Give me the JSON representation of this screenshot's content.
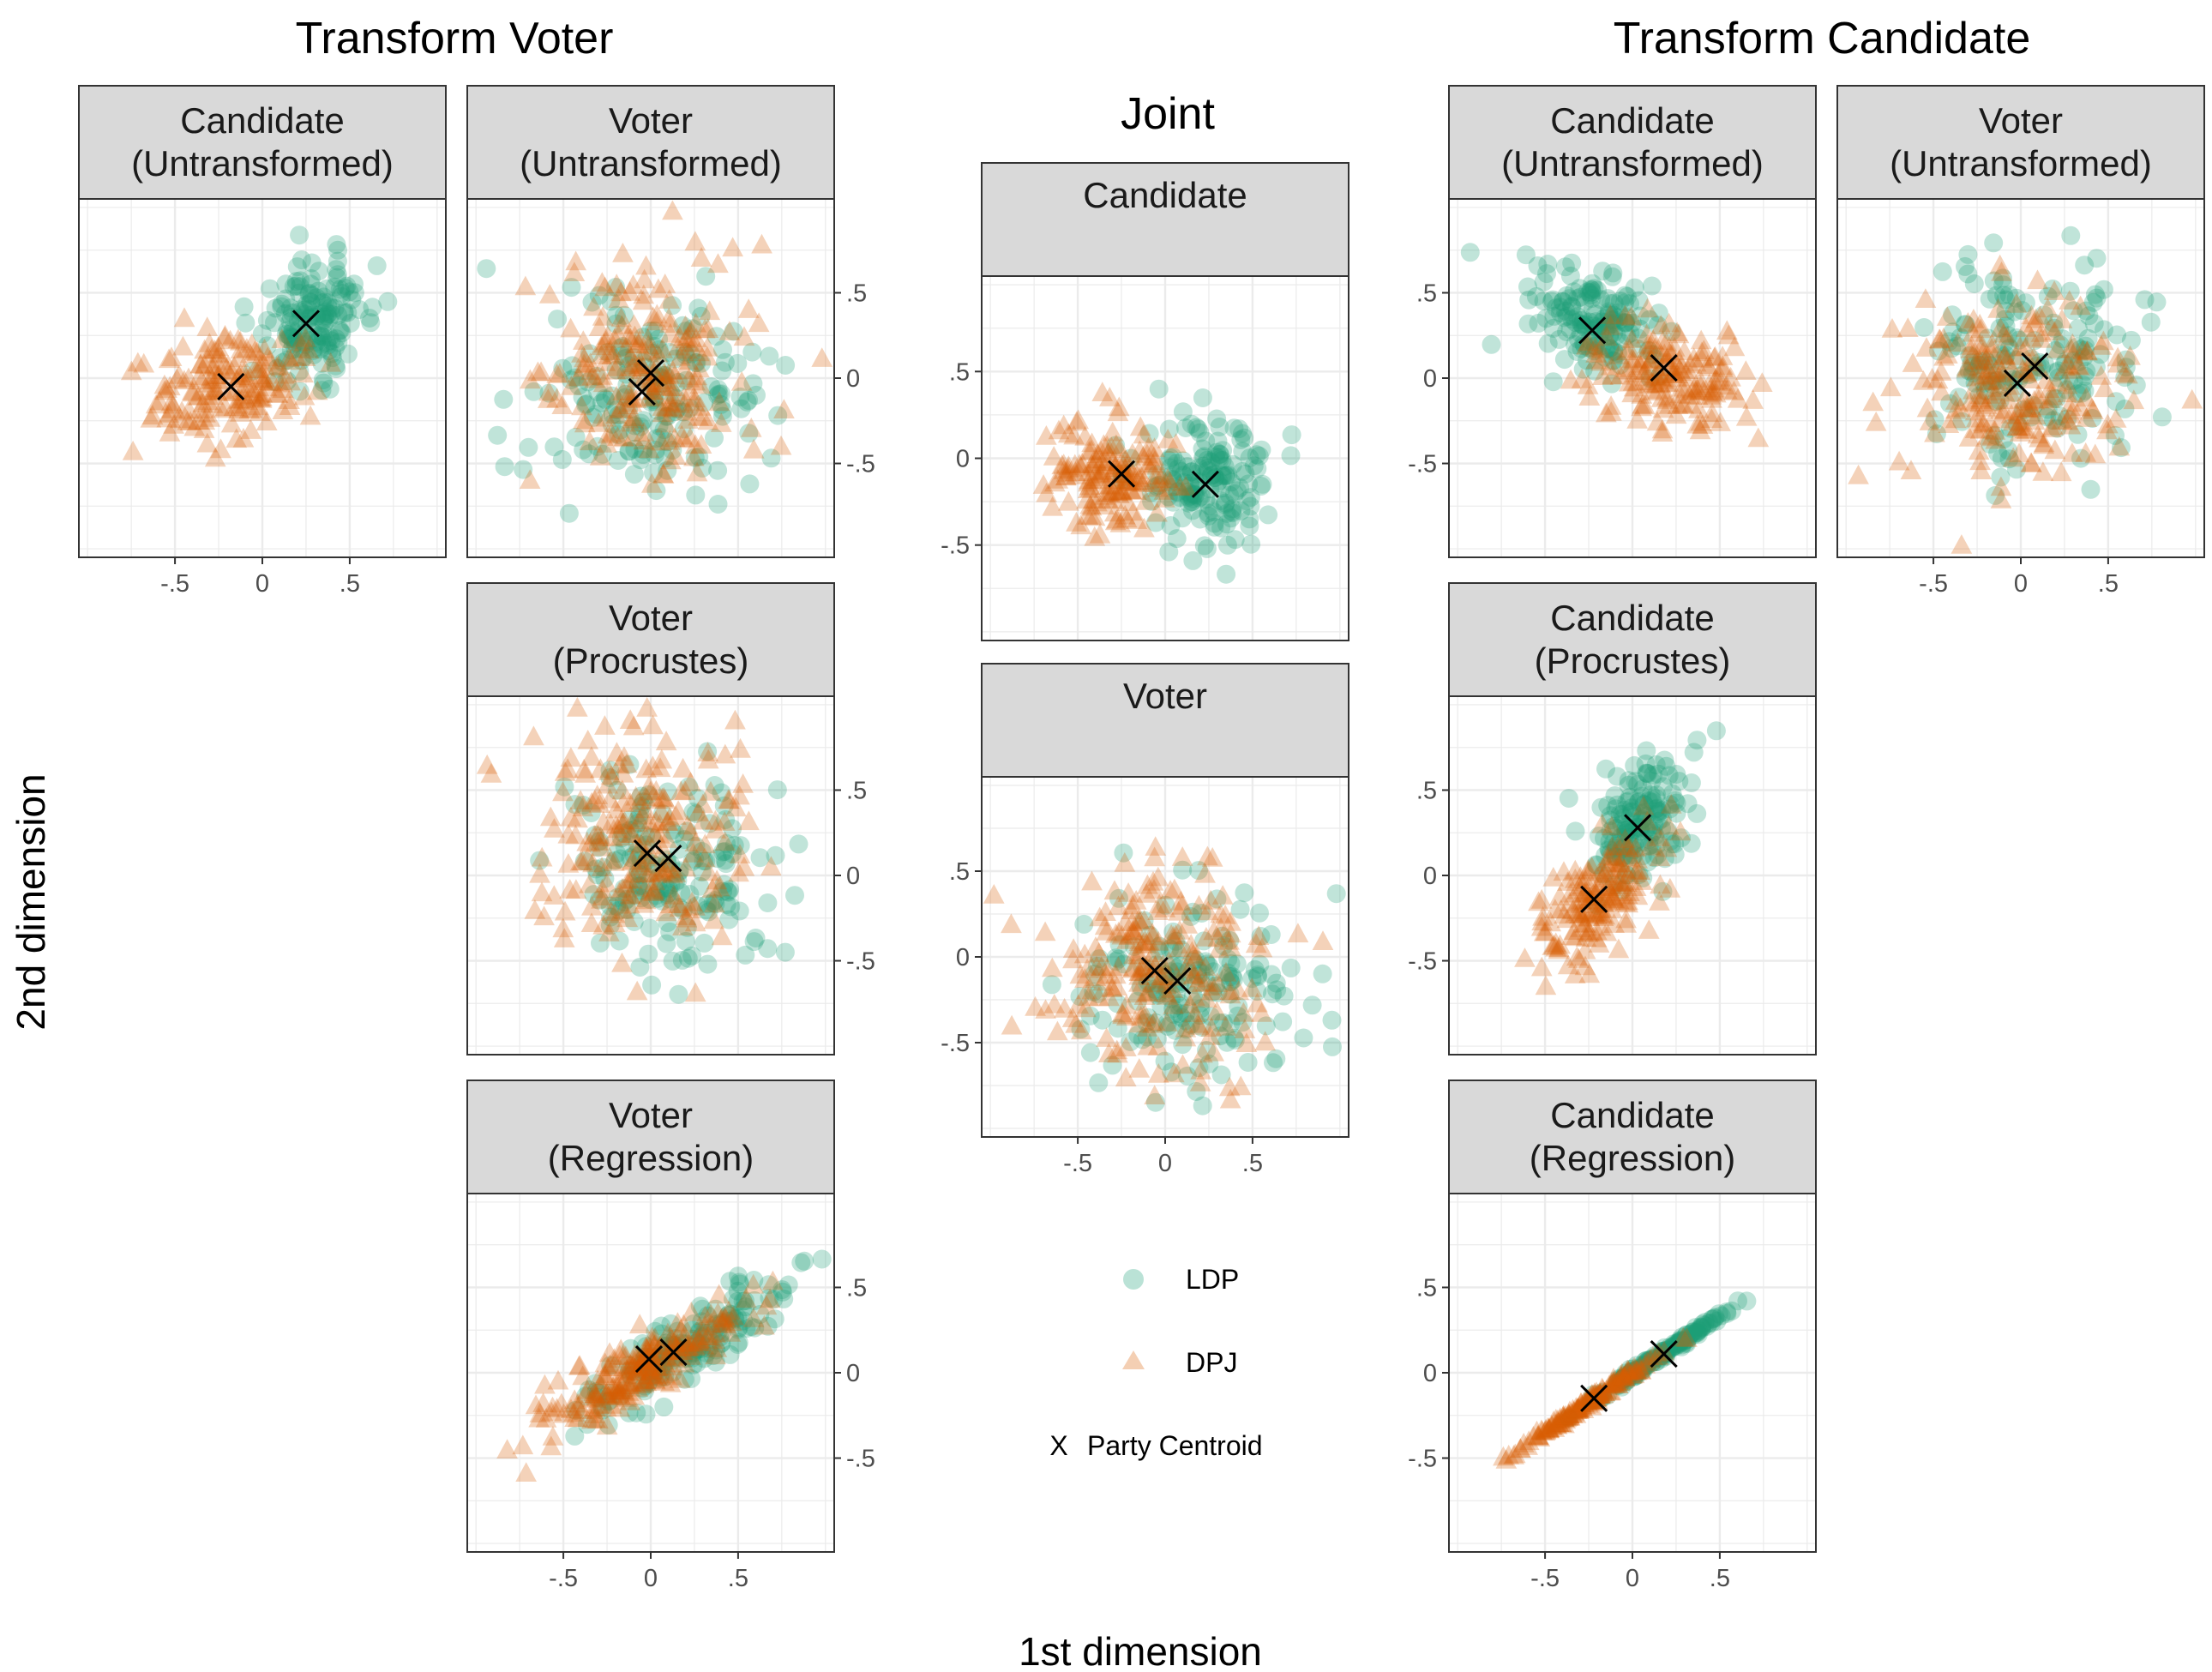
{
  "titles": {
    "transform_voter": "Transform Voter",
    "joint": "Joint",
    "transform_candidate": "Transform Candidate"
  },
  "axis_labels": {
    "x": "1st dimension",
    "y": "2nd dimension"
  },
  "legend": {
    "ldp": "LDP",
    "dpj": "DPJ",
    "centroid_symbol": "X",
    "centroid": "Party Centroid"
  },
  "colors": {
    "ldp": "#1b9e77",
    "dpj": "#d95f02",
    "centroid": "#000000",
    "strip_bg": "#d9d9d9",
    "grid": "#ebebeb"
  },
  "chart_data": [
    {
      "id": "tv_candidate_untransformed",
      "type": "scatter",
      "strip": [
        "Candidate",
        "(Untransformed)"
      ],
      "xlim": [
        -1.05,
        1.05
      ],
      "ylim": [
        -1.05,
        1.05
      ],
      "x_ticks": [
        -0.5,
        0,
        0.5
      ],
      "x_tick_labels": [
        "-.5",
        "0",
        ".5"
      ],
      "show_x_axis": true,
      "y_ticks": [],
      "y_tick_labels": [],
      "y_axis_side": "none",
      "series": [
        {
          "name": "LDP",
          "n": 160,
          "mean": [
            0.3,
            0.35
          ],
          "sd": [
            0.16,
            0.18
          ],
          "rho": 0.3,
          "centroid": [
            0.25,
            0.32
          ]
        },
        {
          "name": "DPJ",
          "n": 170,
          "mean": [
            -0.2,
            -0.05
          ],
          "sd": [
            0.22,
            0.16
          ],
          "rho": 0.25,
          "centroid": [
            -0.18,
            -0.05
          ]
        }
      ]
    },
    {
      "id": "tv_voter_untransformed",
      "type": "scatter",
      "strip": [
        "Voter",
        "(Untransformed)"
      ],
      "xlim": [
        -1.05,
        1.05
      ],
      "ylim": [
        -1.05,
        1.05
      ],
      "x_ticks": [],
      "x_tick_labels": [],
      "show_x_axis": false,
      "y_ticks": [
        0.5,
        0,
        -0.5
      ],
      "y_tick_labels": [
        ".5",
        "0",
        "-.5"
      ],
      "y_axis_side": "right",
      "series": [
        {
          "name": "LDP",
          "n": 170,
          "mean": [
            -0.05,
            -0.15
          ],
          "sd": [
            0.32,
            0.3
          ],
          "rho": 0.0,
          "centroid": [
            -0.05,
            -0.08
          ]
        },
        {
          "name": "DPJ",
          "n": 220,
          "mean": [
            0.0,
            0.05
          ],
          "sd": [
            0.3,
            0.32
          ],
          "rho": 0.0,
          "centroid": [
            0.0,
            0.03
          ]
        }
      ]
    },
    {
      "id": "tv_voter_procrustes",
      "type": "scatter",
      "strip": [
        "Voter",
        "(Procrustes)"
      ],
      "xlim": [
        -1.05,
        1.05
      ],
      "ylim": [
        -1.05,
        1.05
      ],
      "x_ticks": [],
      "x_tick_labels": [],
      "show_x_axis": false,
      "y_ticks": [
        0.5,
        0,
        -0.5
      ],
      "y_tick_labels": [
        ".5",
        "0",
        "-.5"
      ],
      "y_axis_side": "right",
      "series": [
        {
          "name": "LDP",
          "n": 170,
          "mean": [
            0.1,
            0.0
          ],
          "sd": [
            0.3,
            0.3
          ],
          "rho": -0.1,
          "centroid": [
            0.1,
            0.1
          ]
        },
        {
          "name": "DPJ",
          "n": 220,
          "mean": [
            -0.05,
            0.2
          ],
          "sd": [
            0.3,
            0.32
          ],
          "rho": -0.15,
          "centroid": [
            -0.02,
            0.13
          ]
        }
      ]
    },
    {
      "id": "tv_voter_regression",
      "type": "scatter",
      "strip": [
        "Voter",
        "(Regression)"
      ],
      "xlim": [
        -1.05,
        1.05
      ],
      "ylim": [
        -1.05,
        1.05
      ],
      "x_ticks": [
        -0.5,
        0,
        0.5
      ],
      "x_tick_labels": [
        "-.5",
        "0",
        ".5"
      ],
      "show_x_axis": true,
      "y_ticks": [
        0.5,
        0,
        -0.5
      ],
      "y_tick_labels": [
        ".5",
        "0",
        "-.5"
      ],
      "y_axis_side": "right",
      "series": [
        {
          "name": "LDP",
          "n": 170,
          "mean": [
            0.2,
            0.15
          ],
          "sd": [
            0.32,
            0.22
          ],
          "rho": 0.9,
          "centroid": [
            0.13,
            0.12
          ]
        },
        {
          "name": "DPJ",
          "n": 220,
          "mean": [
            -0.05,
            0.03
          ],
          "sd": [
            0.3,
            0.2
          ],
          "rho": 0.9,
          "centroid": [
            -0.01,
            0.08
          ]
        }
      ]
    },
    {
      "id": "joint_candidate",
      "type": "scatter",
      "strip": [
        "Candidate"
      ],
      "xlim": [
        -1.05,
        1.05
      ],
      "ylim": [
        -1.05,
        1.05
      ],
      "x_ticks": [],
      "x_tick_labels": [],
      "show_x_axis": false,
      "y_ticks": [
        0.5,
        0,
        -0.5
      ],
      "y_tick_labels": [
        ".5",
        "0",
        "-.5"
      ],
      "y_axis_side": "left",
      "series": [
        {
          "name": "LDP",
          "n": 160,
          "mean": [
            0.25,
            -0.15
          ],
          "sd": [
            0.2,
            0.18
          ],
          "rho": 0.0,
          "centroid": [
            0.23,
            -0.15
          ]
        },
        {
          "name": "DPJ",
          "n": 160,
          "mean": [
            -0.3,
            -0.1
          ],
          "sd": [
            0.17,
            0.15
          ],
          "rho": 0.0,
          "centroid": [
            -0.25,
            -0.09
          ]
        }
      ]
    },
    {
      "id": "joint_voter",
      "type": "scatter",
      "strip": [
        "Voter"
      ],
      "xlim": [
        -1.05,
        1.05
      ],
      "ylim": [
        -1.05,
        1.05
      ],
      "x_ticks": [
        -0.5,
        0,
        0.5
      ],
      "x_tick_labels": [
        "-.5",
        "0",
        ".5"
      ],
      "show_x_axis": true,
      "y_ticks": [
        0.5,
        0,
        -0.5
      ],
      "y_tick_labels": [
        ".5",
        "0",
        "-.5"
      ],
      "y_axis_side": "left",
      "series": [
        {
          "name": "LDP",
          "n": 170,
          "mean": [
            0.1,
            -0.2
          ],
          "sd": [
            0.3,
            0.28
          ],
          "rho": 0.0,
          "centroid": [
            0.07,
            -0.14
          ]
        },
        {
          "name": "DPJ",
          "n": 220,
          "mean": [
            -0.05,
            -0.05
          ],
          "sd": [
            0.32,
            0.3
          ],
          "rho": 0.0,
          "centroid": [
            -0.06,
            -0.08
          ]
        }
      ]
    },
    {
      "id": "tc_candidate_untransformed",
      "type": "scatter",
      "strip": [
        "Candidate",
        "(Untransformed)"
      ],
      "xlim": [
        -1.05,
        1.05
      ],
      "ylim": [
        -1.05,
        1.05
      ],
      "x_ticks": [],
      "x_tick_labels": [],
      "show_x_axis": false,
      "y_ticks": [
        0.5,
        0,
        -0.5
      ],
      "y_tick_labels": [
        ".5",
        "0",
        "-.5"
      ],
      "y_axis_side": "left",
      "series": [
        {
          "name": "LDP",
          "n": 160,
          "mean": [
            -0.25,
            0.35
          ],
          "sd": [
            0.2,
            0.17
          ],
          "rho": -0.3,
          "centroid": [
            -0.23,
            0.28
          ]
        },
        {
          "name": "DPJ",
          "n": 170,
          "mean": [
            0.2,
            0.0
          ],
          "sd": [
            0.22,
            0.17
          ],
          "rho": -0.2,
          "centroid": [
            0.18,
            0.06
          ]
        }
      ]
    },
    {
      "id": "tc_voter_untransformed",
      "type": "scatter",
      "strip": [
        "Voter",
        "(Untransformed)"
      ],
      "xlim": [
        -1.05,
        1.05
      ],
      "ylim": [
        -1.05,
        1.05
      ],
      "x_ticks": [
        -0.5,
        0,
        0.5
      ],
      "x_tick_labels": [
        "-.5",
        "0",
        ".5"
      ],
      "show_x_axis": true,
      "y_ticks": [],
      "y_tick_labels": [],
      "y_axis_side": "none",
      "series": [
        {
          "name": "LDP",
          "n": 170,
          "mean": [
            0.05,
            0.1
          ],
          "sd": [
            0.3,
            0.28
          ],
          "rho": 0.0,
          "centroid": [
            0.08,
            0.07
          ]
        },
        {
          "name": "DPJ",
          "n": 220,
          "mean": [
            -0.05,
            -0.05
          ],
          "sd": [
            0.3,
            0.3
          ],
          "rho": 0.0,
          "centroid": [
            -0.02,
            -0.03
          ]
        }
      ]
    },
    {
      "id": "tc_candidate_procrustes",
      "type": "scatter",
      "strip": [
        "Candidate",
        "(Procrustes)"
      ],
      "xlim": [
        -1.05,
        1.05
      ],
      "ylim": [
        -1.05,
        1.05
      ],
      "x_ticks": [],
      "x_tick_labels": [],
      "show_x_axis": false,
      "y_ticks": [
        0.5,
        0,
        -0.5
      ],
      "y_tick_labels": [
        ".5",
        "0",
        "-.5"
      ],
      "y_axis_side": "left",
      "series": [
        {
          "name": "LDP",
          "n": 160,
          "mean": [
            0.05,
            0.3
          ],
          "sd": [
            0.15,
            0.18
          ],
          "rho": 0.4,
          "centroid": [
            0.03,
            0.28
          ]
        },
        {
          "name": "DPJ",
          "n": 170,
          "mean": [
            -0.2,
            -0.15
          ],
          "sd": [
            0.18,
            0.22
          ],
          "rho": 0.6,
          "centroid": [
            -0.22,
            -0.14
          ]
        }
      ]
    },
    {
      "id": "tc_candidate_regression",
      "type": "scatter",
      "strip": [
        "Candidate",
        "(Regression)"
      ],
      "xlim": [
        -1.05,
        1.05
      ],
      "ylim": [
        -1.05,
        1.05
      ],
      "x_ticks": [
        -0.5,
        0,
        0.5
      ],
      "x_tick_labels": [
        "-.5",
        "0",
        ".5"
      ],
      "show_x_axis": true,
      "y_ticks": [
        0.5,
        0,
        -0.5
      ],
      "y_tick_labels": [
        ".5",
        "0",
        "-.5"
      ],
      "y_axis_side": "left",
      "series": [
        {
          "name": "LDP",
          "n": 160,
          "mean": [
            0.2,
            0.13
          ],
          "sd": [
            0.22,
            0.15
          ],
          "rho": 0.995,
          "centroid": [
            0.18,
            0.11
          ]
        },
        {
          "name": "DPJ",
          "n": 170,
          "mean": [
            -0.25,
            -0.17
          ],
          "sd": [
            0.2,
            0.14
          ],
          "rho": 0.995,
          "centroid": [
            -0.22,
            -0.15
          ]
        }
      ]
    }
  ]
}
